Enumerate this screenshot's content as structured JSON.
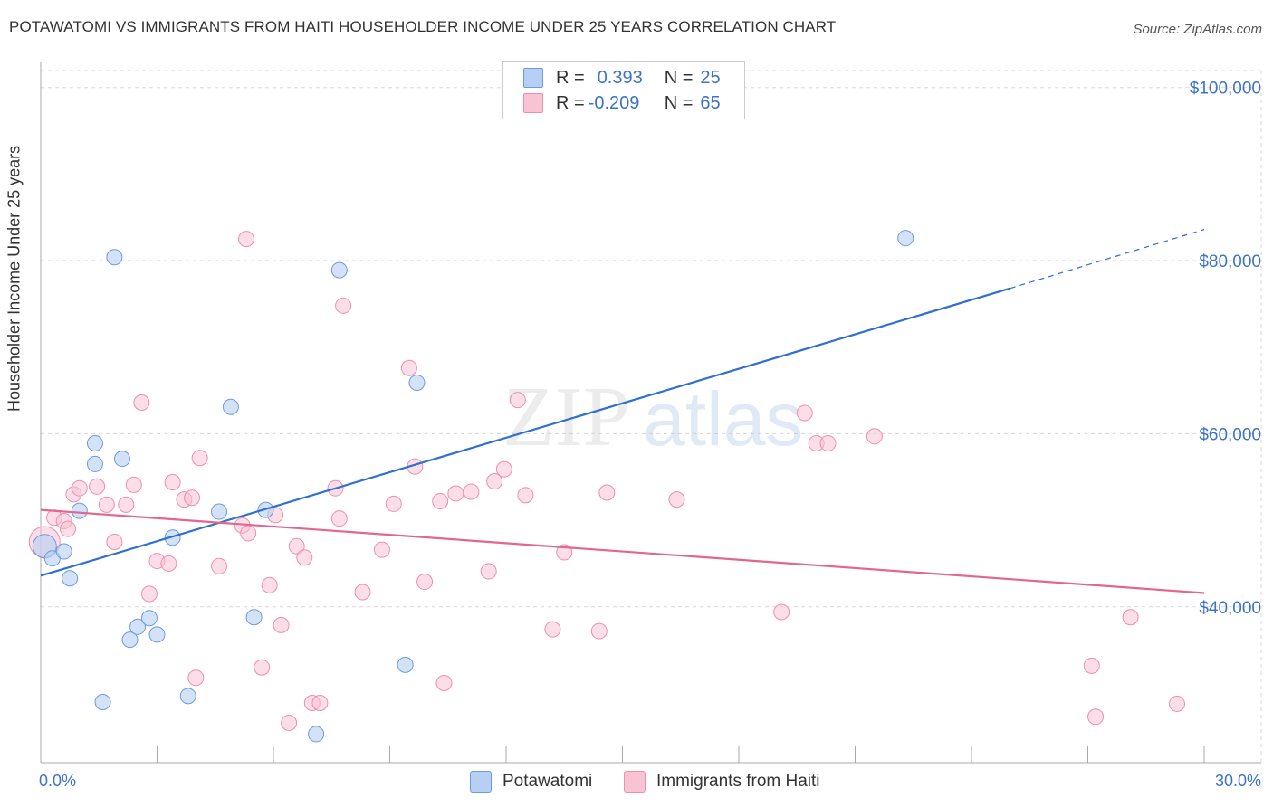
{
  "title": "POTAWATOMI VS IMMIGRANTS FROM HAITI HOUSEHOLDER INCOME UNDER 25 YEARS CORRELATION CHART",
  "source": "Source: ZipAtlas.com",
  "watermark": {
    "zip": "ZIP",
    "atlas": "atlas"
  },
  "legend_top": [
    {
      "r_label": "R = ",
      "r_value": "0.393",
      "n_label": "N = ",
      "n_value": "25"
    },
    {
      "r_label": "R = ",
      "r_value": "-0.209",
      "n_label": "N = ",
      "n_value": "65"
    }
  ],
  "legend_bottom": [
    "Potawatomi",
    "Immigrants from Haiti"
  ],
  "colors": {
    "blue_fill": "#b6cff2",
    "blue_stroke": "#6d9be0",
    "blue_line": "#2e6fd1",
    "pink_fill": "#f8c3d3",
    "pink_stroke": "#ee8fae",
    "pink_line": "#e36593",
    "axis_text": "#3c73c9",
    "grid": "#d8d8d8"
  },
  "chart_data": {
    "type": "scatter",
    "xlabel": "",
    "ylabel": "Householder Income Under 25 years",
    "xlim": [
      0,
      30
    ],
    "ylim": [
      22000,
      103000
    ],
    "x_tick_labels": [
      {
        "value": 0,
        "label": "0.0%"
      },
      {
        "value": 30,
        "label": "30.0%"
      }
    ],
    "y_ticks": [
      {
        "value": 100000,
        "label": "$100,000"
      },
      {
        "value": 80000,
        "label": "$80,000"
      },
      {
        "value": 60000,
        "label": "$60,000"
      },
      {
        "value": 40000,
        "label": "$40,000"
      }
    ],
    "x_minor_ticks": [
      3,
      6,
      9,
      12,
      15,
      18,
      21,
      24,
      27,
      30
    ],
    "series": [
      {
        "name": "Potawatomi",
        "color": "blue",
        "r": 0.393,
        "n": 25,
        "points": [
          [
            0.1,
            47000
          ],
          [
            0.3,
            45600
          ],
          [
            0.6,
            46400
          ],
          [
            0.75,
            43300
          ],
          [
            1.0,
            51100
          ],
          [
            1.4,
            58900
          ],
          [
            1.4,
            56500
          ],
          [
            1.6,
            29000
          ],
          [
            1.9,
            80400
          ],
          [
            2.1,
            57100
          ],
          [
            2.3,
            36200
          ],
          [
            2.5,
            37700
          ],
          [
            2.8,
            38700
          ],
          [
            3.0,
            36800
          ],
          [
            3.4,
            48000
          ],
          [
            3.8,
            29700
          ],
          [
            4.6,
            51000
          ],
          [
            4.9,
            63100
          ],
          [
            5.5,
            38800
          ],
          [
            5.8,
            51200
          ],
          [
            7.1,
            25300
          ],
          [
            7.7,
            78900
          ],
          [
            9.4,
            33300
          ],
          [
            9.7,
            65900
          ],
          [
            22.3,
            82600
          ]
        ],
        "trend": {
          "x_start": 0,
          "y_start": 43600,
          "x_end": 25.0,
          "y_end": 76800,
          "dash_x_end": 30,
          "dash_y_end": 83600
        }
      },
      {
        "name": "Immigrants from Haiti",
        "color": "pink",
        "r": -0.209,
        "n": 65,
        "points": [
          [
            0.1,
            47500
          ],
          [
            0.35,
            50300
          ],
          [
            0.6,
            49900
          ],
          [
            0.7,
            49000
          ],
          [
            0.85,
            53000
          ],
          [
            1.0,
            53700
          ],
          [
            1.45,
            53900
          ],
          [
            1.7,
            51800
          ],
          [
            1.9,
            47500
          ],
          [
            2.2,
            51800
          ],
          [
            2.4,
            54100
          ],
          [
            2.6,
            63600
          ],
          [
            2.8,
            41500
          ],
          [
            3.0,
            45300
          ],
          [
            3.3,
            45000
          ],
          [
            3.4,
            54400
          ],
          [
            3.7,
            52400
          ],
          [
            3.9,
            52600
          ],
          [
            4.0,
            31800
          ],
          [
            4.1,
            57200
          ],
          [
            4.6,
            44700
          ],
          [
            5.2,
            49400
          ],
          [
            5.35,
            48500
          ],
          [
            5.3,
            82500
          ],
          [
            5.7,
            33000
          ],
          [
            5.9,
            42500
          ],
          [
            6.05,
            50600
          ],
          [
            6.2,
            37900
          ],
          [
            6.4,
            26600
          ],
          [
            6.6,
            47000
          ],
          [
            6.8,
            45700
          ],
          [
            7.0,
            28900
          ],
          [
            7.2,
            28900
          ],
          [
            7.6,
            53700
          ],
          [
            7.7,
            50200
          ],
          [
            7.8,
            74800
          ],
          [
            8.3,
            41700
          ],
          [
            8.8,
            46600
          ],
          [
            9.1,
            51900
          ],
          [
            9.5,
            67600
          ],
          [
            9.65,
            56200
          ],
          [
            9.9,
            42900
          ],
          [
            10.3,
            52200
          ],
          [
            10.4,
            31200
          ],
          [
            10.7,
            53100
          ],
          [
            11.1,
            53300
          ],
          [
            11.55,
            44100
          ],
          [
            11.7,
            54500
          ],
          [
            11.95,
            55900
          ],
          [
            12.3,
            63900
          ],
          [
            12.5,
            52900
          ],
          [
            13.2,
            37400
          ],
          [
            13.5,
            46300
          ],
          [
            14.4,
            37200
          ],
          [
            14.6,
            53200
          ],
          [
            16.4,
            52400
          ],
          [
            19.1,
            39400
          ],
          [
            19.7,
            62400
          ],
          [
            20.0,
            58900
          ],
          [
            20.3,
            58900
          ],
          [
            21.5,
            59700
          ],
          [
            27.1,
            33200
          ],
          [
            27.2,
            27300
          ],
          [
            28.1,
            38800
          ],
          [
            29.3,
            28800
          ]
        ],
        "trend": {
          "x_start": 0,
          "y_start": 51200,
          "x_end": 30,
          "y_end": 41600
        }
      }
    ]
  }
}
